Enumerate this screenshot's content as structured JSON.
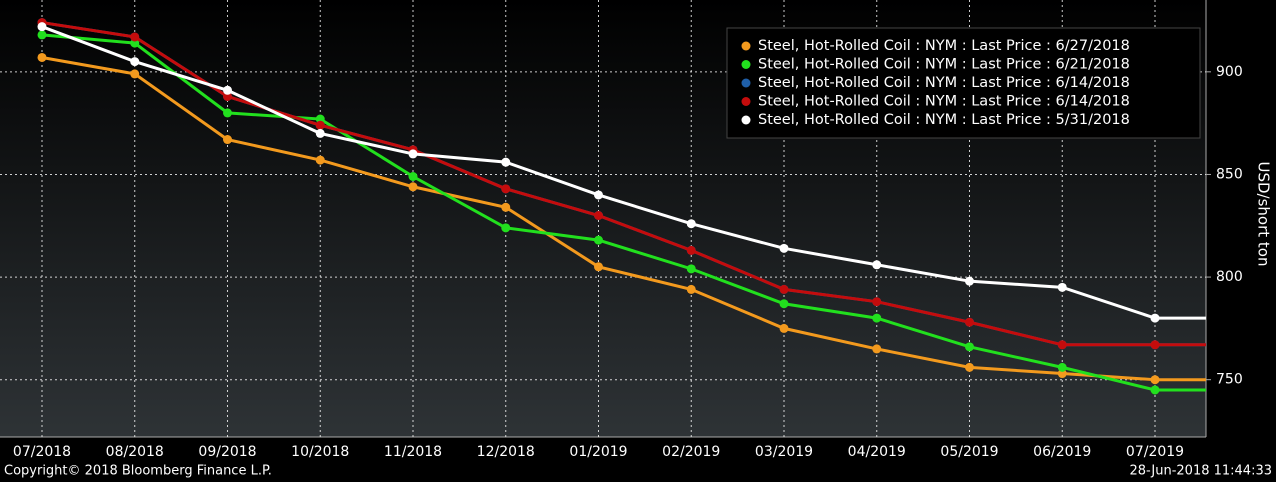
{
  "chart_data": {
    "type": "line",
    "categories": [
      "07/2018",
      "08/2018",
      "09/2018",
      "10/2018",
      "11/2018",
      "12/2018",
      "01/2019",
      "02/2019",
      "03/2019",
      "04/2019",
      "05/2019",
      "06/2019",
      "07/2019"
    ],
    "series": [
      {
        "name": "Steel, Hot-Rolled Coil : NYM : Last Price : 6/27/2018",
        "color": "#f39a1e",
        "values": [
          907,
          899,
          867,
          857,
          844,
          834,
          805,
          794,
          775,
          765,
          756,
          753,
          750
        ]
      },
      {
        "name": "Steel, Hot-Rolled Coil : NYM : Last Price : 6/21/2018",
        "color": "#22e01e",
        "values": [
          918,
          914,
          880,
          877,
          849,
          824,
          818,
          804,
          787,
          780,
          766,
          756,
          745
        ]
      },
      {
        "name": "Steel, Hot-Rolled Coil : NYM : Last Price : 6/14/2018",
        "color": "#1f5fa8",
        "values": [
          924,
          917,
          888,
          874,
          862,
          843,
          830,
          813,
          794,
          788,
          778,
          767,
          767
        ]
      },
      {
        "name": "Steel, Hot-Rolled Coil : NYM : Last Price : 6/14/2018",
        "color": "#c40c0c",
        "values": [
          924,
          917,
          888,
          874,
          862,
          843,
          830,
          813,
          794,
          788,
          778,
          767,
          767
        ]
      },
      {
        "name": "Steel, Hot-Rolled Coil : NYM : Last Price : 5/31/2018",
        "color": "#ffffff",
        "values": [
          922,
          905,
          891,
          870,
          860,
          856,
          840,
          826,
          814,
          806,
          798,
          795,
          780
        ]
      }
    ],
    "ylabel": "USD/short ton",
    "ylim": [
      725,
      935
    ],
    "yticks": [
      750,
      800,
      850,
      900
    ],
    "grid": true,
    "legend": "upper right",
    "footer_left": "Copyright© 2018 Bloomberg Finance L.P.",
    "footer_right": "28-Jun-2018 11:44:33"
  }
}
